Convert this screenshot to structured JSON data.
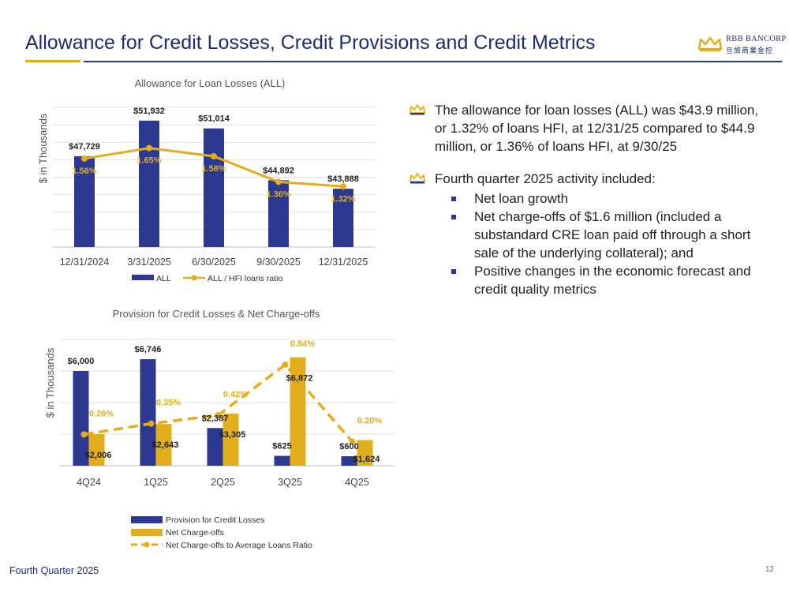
{
  "page": {
    "title": "Allowance for Credit Losses, Credit Provisions and Credit Metrics",
    "logo_name": "RBB BANCORP",
    "logo_cn": "旦旅商業金控",
    "footer": "Fourth Quarter 2025",
    "page_number": "12"
  },
  "colors": {
    "navy": "#2b3990",
    "gold": "#e3ae1d",
    "title": "#1f2d6b"
  },
  "bullets": [
    {
      "text": "The allowance for loan losses (ALL) was $43.9 million, or 1.32% of loans HFI, at 12/31/25 compared to $44.9 million, or 1.36% of loans HFI, at 9/30/25",
      "sub": []
    },
    {
      "text": "Fourth quarter 2025 activity included:",
      "sub": [
        "Net loan growth",
        "Net charge-offs of $1.6 million (included a substandard CRE loan paid off through a short sale of the underlying collateral); and",
        "Positive changes in the economic forecast and credit quality metrics"
      ]
    }
  ],
  "chart_data": [
    {
      "type": "bar",
      "title": "Allowance for Loan Losses (ALL)",
      "ylabel": "$ in Thousands",
      "categories": [
        "12/31/2024",
        "3/31/2025",
        "6/30/2025",
        "9/30/2025",
        "12/31/2025"
      ],
      "series": [
        {
          "name": "ALL",
          "kind": "bar",
          "values": [
            47729,
            51932,
            51014,
            44892,
            43888
          ],
          "labels": [
            "$47,729",
            "$51,932",
            "$51,014",
            "$44,892",
            "$43,888"
          ]
        },
        {
          "name": "ALL / HFI loans ratio",
          "kind": "line",
          "values": [
            1.56,
            1.65,
            1.58,
            1.36,
            1.32
          ],
          "labels": [
            "1.56%",
            "1.65%",
            "1.58%",
            "1.36%",
            "1.32%"
          ]
        }
      ],
      "ylim": [
        37000,
        53500
      ],
      "ratio_range": [
        0.8,
        2.0
      ],
      "grid": true,
      "legend": "bottom"
    },
    {
      "type": "bar",
      "title": "Provision for Credit Losses & Net Charge-offs",
      "ylabel": "$ in Thousands",
      "categories": [
        "4Q24",
        "1Q25",
        "2Q25",
        "3Q25",
        "4Q25"
      ],
      "series": [
        {
          "name": "Provision for Credit Losses",
          "kind": "bar",
          "values": [
            6000,
            6746,
            2387,
            625,
            600
          ],
          "labels": [
            "$6,000",
            "$6,746",
            "$2,387",
            "$625",
            "$600"
          ]
        },
        {
          "name": "Net Charge-offs",
          "kind": "bar",
          "values": [
            2006,
            2643,
            3305,
            6872,
            1624
          ],
          "labels": [
            "$2,006",
            "$2,643",
            "$3,305",
            "$6,872",
            "$1,624"
          ]
        },
        {
          "name": "Net Charge-offs to Average Loans Ratio",
          "kind": "line",
          "values": [
            0.26,
            0.35,
            0.42,
            0.84,
            0.2
          ],
          "labels": [
            "0.26%",
            "0.35%",
            "0.42%",
            "0.84%",
            "0.20%"
          ]
        }
      ],
      "ylim": [
        0,
        8000
      ],
      "ratio_range": [
        0,
        1.05
      ],
      "grid": true,
      "legend": "bottom"
    }
  ]
}
